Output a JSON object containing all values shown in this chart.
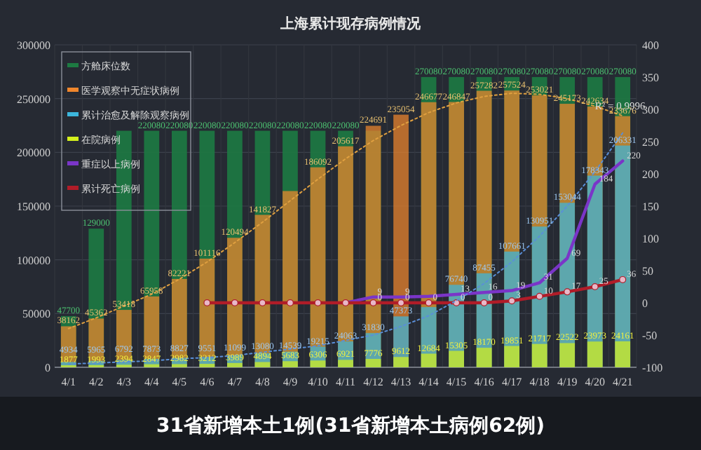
{
  "chart_data": {
    "type": "bar",
    "title": "上海累计现存病例情况",
    "categories": [
      "4/1",
      "4/2",
      "4/3",
      "4/4",
      "4/5",
      "4/6",
      "4/7",
      "4/8",
      "4/9",
      "4/10",
      "4/11",
      "4/12",
      "4/13",
      "4/14",
      "4/15",
      "4/16",
      "4/17",
      "4/18",
      "4/19",
      "4/20",
      "4/21"
    ],
    "series": [
      {
        "name": "方舱床位数",
        "color": "#1d7a42",
        "values": [
          47700,
          129000,
          220080,
          220080,
          220080,
          220080,
          220080,
          220080,
          220080,
          220080,
          220080,
          220080,
          null,
          270080,
          270080,
          270080,
          270080,
          270080,
          270080,
          270080,
          270080
        ],
        "value_labels": [
          "47700",
          "129000",
          null,
          "220080",
          "220080",
          "220080",
          "220080",
          "220080",
          "220080",
          "220080",
          "220080",
          null,
          null,
          "270080",
          "270080",
          "270080",
          "270080",
          "270080",
          "270080",
          "270080",
          "270080"
        ]
      },
      {
        "name": "医学观察中无症状病例",
        "color": "#f0862c",
        "values": [
          38162,
          45362,
          53418,
          65958,
          82221,
          101116,
          120494,
          141827,
          164000,
          186092,
          205617,
          224691,
          235054,
          246677,
          246847,
          257282,
          257524,
          253021,
          245173,
          242634,
          233676
        ],
        "value_labels": [
          "38162",
          "45362",
          "53418",
          "65958",
          "82221",
          "101116",
          "120494",
          "141827",
          null,
          "186092",
          "205617",
          "224691",
          "235054",
          "246677",
          "246847",
          "257282",
          "257524",
          "253021",
          "245173",
          "242634",
          "233676"
        ]
      },
      {
        "name": "累计治愈及解除观察病例",
        "color": "#3cb6dc",
        "values": [
          4934,
          5965,
          6792,
          7873,
          8827,
          9551,
          11099,
          13080,
          14539,
          19215,
          24063,
          31830,
          47373,
          56000,
          76740,
          87455,
          107661,
          130951,
          153044,
          178343,
          206331
        ],
        "value_labels": [
          "4934",
          "5965",
          "6792",
          "7873",
          "8827",
          "9551",
          "11099",
          "13080",
          "14539",
          "19215",
          "24063",
          "31830",
          "47373",
          null,
          "76740",
          "87455",
          "107661",
          "130951",
          "153044",
          "178343",
          "206331"
        ]
      },
      {
        "name": "在院病例",
        "color": "#d4f01c",
        "values": [
          1877,
          1993,
          2394,
          2847,
          2982,
          3212,
          3989,
          4894,
          5683,
          6306,
          6921,
          7776,
          9612,
          12684,
          15305,
          18170,
          19851,
          21717,
          22522,
          23973,
          24161
        ],
        "value_labels": [
          "1877",
          "1993",
          "2394",
          "2847",
          "2982",
          "3212",
          "3989",
          "4894",
          "5683",
          "6306",
          "6921",
          "7776",
          "9612",
          "12684",
          "15305",
          "18170",
          "19851",
          "21717",
          "22522",
          "23973",
          "24161"
        ]
      },
      {
        "name": "重症以上病例",
        "type": "line",
        "axis": "y2",
        "color": "#7a35c8",
        "line_style": "solid",
        "marker": "none",
        "values": [
          null,
          null,
          null,
          null,
          null,
          null,
          null,
          null,
          null,
          null,
          0,
          9,
          9,
          10,
          13,
          16,
          19,
          31,
          69,
          184,
          220
        ],
        "value_labels": [
          null,
          null,
          null,
          null,
          null,
          null,
          null,
          null,
          null,
          null,
          null,
          "9",
          "9",
          null,
          "13",
          "16",
          "19",
          "31",
          "69",
          "184",
          "220"
        ]
      },
      {
        "name": "累计死亡病例",
        "type": "line",
        "axis": "y2",
        "color": "#b01c28",
        "line_style": "solid",
        "marker": "circle",
        "values": [
          null,
          null,
          null,
          null,
          null,
          0,
          0,
          0,
          0,
          0,
          0,
          0,
          0,
          0,
          0,
          0,
          3,
          10,
          17,
          25,
          36
        ],
        "value_labels": [
          null,
          null,
          null,
          null,
          null,
          null,
          null,
          null,
          null,
          null,
          null,
          "0",
          "0",
          "0",
          "0",
          "0",
          "3",
          "10",
          "17",
          "25",
          "36"
        ]
      },
      {
        "type": "line",
        "line_style": "dotted",
        "color": "#e0a040",
        "values": [
          36000,
          46000,
          57000,
          68000,
          82000,
          98000,
          116000,
          135000,
          155000,
          175000,
          194000,
          211000,
          225000,
          237000,
          246000,
          252000,
          255000,
          254000,
          250000,
          243000,
          234000
        ]
      },
      {
        "type": "line",
        "line_style": "dotted",
        "color": "#5a8fd8",
        "values": [
          3000,
          4000,
          5000,
          6000,
          8000,
          9000,
          11000,
          14000,
          17000,
          20000,
          25000,
          30000,
          38000,
          48000,
          62000,
          78000,
          98000,
          122000,
          150000,
          182000,
          218000
        ]
      }
    ],
    "ylim": [
      0,
      300000
    ],
    "yticks": [
      0,
      50000,
      100000,
      150000,
      200000,
      250000,
      300000
    ],
    "y2lim": [
      -100,
      400
    ],
    "y2ticks": [
      -100,
      -50,
      0,
      50,
      100,
      150,
      200,
      250,
      300,
      350,
      400
    ],
    "grid": true,
    "legend": "top left",
    "annotations": [
      {
        "text": "R² = 0.9996",
        "x": "4/20",
        "y": 240000
      },
      "31省新增本土1例(31省新增本土病例62例)"
    ]
  }
}
